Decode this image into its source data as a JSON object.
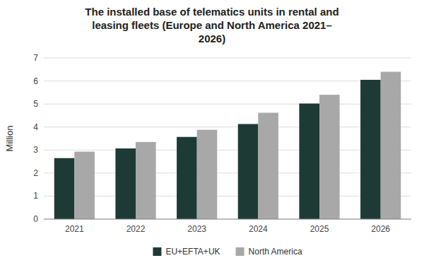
{
  "chart_data": {
    "type": "bar",
    "title": "The installed base of telematics units in rental and\nleasing fleets (Europe and North America 2021–\n2026)",
    "y_label": "Million",
    "categories": [
      "2021",
      "2022",
      "2023",
      "2024",
      "2025",
      "2026"
    ],
    "series": [
      {
        "name": "EU+EFTA+UK",
        "color": "#1e3a34",
        "values": [
          2.65,
          3.07,
          3.57,
          4.13,
          5.02,
          6.05
        ]
      },
      {
        "name": "North America",
        "color": "#a8a8a8",
        "values": [
          2.93,
          3.35,
          3.88,
          4.62,
          5.4,
          6.4
        ]
      }
    ],
    "ylim": [
      0,
      7
    ],
    "yticks": [
      0,
      1,
      2,
      3,
      4,
      5,
      6,
      7
    ],
    "grid": true,
    "legend": "bottom"
  }
}
